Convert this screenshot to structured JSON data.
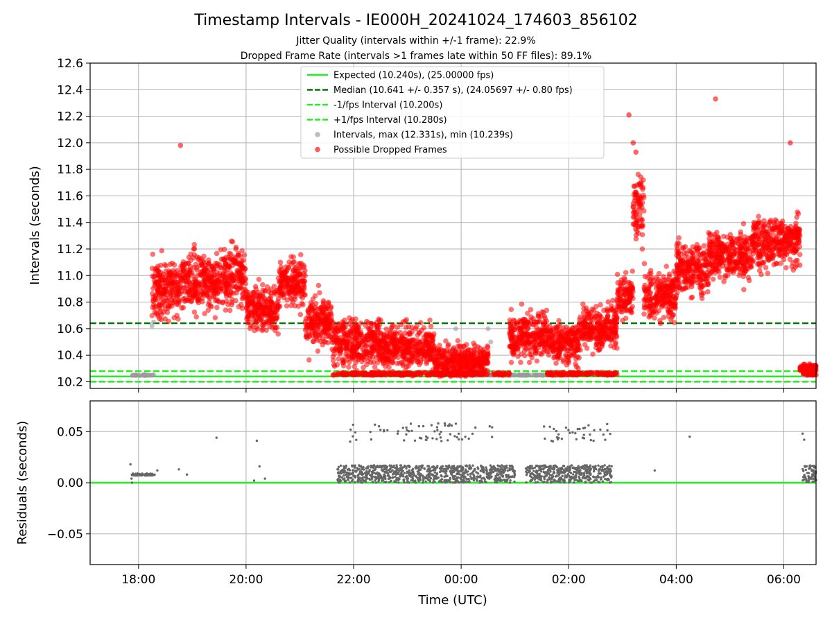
{
  "title": "Timestamp Intervals - IE000H_20241024_174603_856102",
  "subtitle_1": "Jitter Quality (intervals within +/-1 frame): 22.9%",
  "subtitle_2": "Dropped Frame Rate (intervals >1 frames late within 50 FF files): 89.1%",
  "colors": {
    "expected": "#22ee22",
    "median": "#007700",
    "bound": "#22ee22",
    "intervals": "#999999",
    "dropped": "#ff0000",
    "residuals": "#666666",
    "grid": "#b0b0b0"
  },
  "chart_data": [
    {
      "type": "scatter",
      "panel": "top",
      "ylabel": "Intervals (seconds)",
      "ylim": [
        10.15,
        12.6
      ],
      "yticks": [
        "10.2",
        "10.4",
        "10.6",
        "10.8",
        "11.0",
        "11.2",
        "11.4",
        "11.6",
        "11.8",
        "12.0",
        "12.2",
        "12.4",
        "12.6"
      ],
      "xlim_hours": [
        17.1,
        30.6
      ],
      "grid": true,
      "legend_position": "top-center",
      "lines": [
        {
          "name": "Expected (10.240s), (25.00000 fps)",
          "value": 10.24,
          "style": "solid",
          "color_key": "expected"
        },
        {
          "name": "Median (10.641 +/- 0.357 s), (24.05697 +/- 0.80 fps)",
          "value": 10.641,
          "style": "dashed",
          "color_key": "median"
        },
        {
          "name": "-1/fps Interval (10.200s)",
          "value": 10.2,
          "style": "dashed",
          "color_key": "bound"
        },
        {
          "name": "+1/fps Interval (10.280s)",
          "value": 10.28,
          "style": "dashed",
          "color_key": "bound"
        }
      ],
      "scatter_series": [
        {
          "name": "Intervals, max (12.331s), min (10.239s)",
          "color_key": "intervals"
        },
        {
          "name": "Possible Dropped Frames",
          "color_key": "dropped"
        }
      ],
      "dropped_segments": [
        {
          "t": [
            18.25,
            18.8
          ],
          "base": 10.9,
          "spread": 0.22
        },
        {
          "t": [
            18.8,
            19.5
          ],
          "base": 10.95,
          "spread": 0.22
        },
        {
          "t": [
            19.5,
            20.0
          ],
          "base": 11.0,
          "spread": 0.22
        },
        {
          "t": [
            20.0,
            20.6
          ],
          "base": 10.75,
          "spread": 0.18
        },
        {
          "t": [
            20.6,
            21.1
          ],
          "base": 10.95,
          "spread": 0.18
        },
        {
          "t": [
            21.1,
            21.6
          ],
          "base": 10.65,
          "spread": 0.2
        },
        {
          "t": [
            21.6,
            22.5
          ],
          "base": 10.5,
          "spread": 0.18
        },
        {
          "t": [
            22.5,
            23.5
          ],
          "base": 10.45,
          "spread": 0.17
        },
        {
          "t": [
            23.5,
            24.0
          ],
          "base": 10.35,
          "spread": 0.14
        },
        {
          "t": [
            24.0,
            24.5
          ],
          "base": 10.35,
          "spread": 0.12
        },
        {
          "t": [
            24.9,
            25.6
          ],
          "base": 10.55,
          "spread": 0.18
        },
        {
          "t": [
            25.6,
            26.2
          ],
          "base": 10.5,
          "spread": 0.16
        },
        {
          "t": [
            26.2,
            26.9
          ],
          "base": 10.6,
          "spread": 0.18
        },
        {
          "t": [
            26.9,
            27.2
          ],
          "base": 10.85,
          "spread": 0.16
        },
        {
          "t": [
            27.2,
            27.4
          ],
          "base": 11.5,
          "spread": 0.25
        },
        {
          "t": [
            27.4,
            28.0
          ],
          "base": 10.85,
          "spread": 0.18
        },
        {
          "t": [
            28.0,
            28.6
          ],
          "base": 11.05,
          "spread": 0.2
        },
        {
          "t": [
            28.6,
            29.4
          ],
          "base": 11.15,
          "spread": 0.18
        },
        {
          "t": [
            29.4,
            30.3
          ],
          "base": 11.25,
          "spread": 0.2
        },
        {
          "t": [
            30.3,
            30.6
          ],
          "base": 10.3,
          "spread": 0.03
        }
      ],
      "dropped_floor_segments": [
        [
          21.6,
          24.5
        ],
        [
          24.6,
          24.9
        ],
        [
          25.6,
          26.9
        ],
        [
          30.35,
          30.6
        ]
      ],
      "normal_segments": [
        {
          "t": [
            17.85,
            18.3
          ],
          "value": 10.25
        },
        {
          "t": [
            24.0,
            25.6
          ],
          "value": 10.25
        },
        {
          "t": [
            30.35,
            30.6
          ],
          "value": 10.25
        }
      ],
      "outliers": [
        {
          "t": 18.78,
          "y": 11.98
        },
        {
          "t": 27.12,
          "y": 12.21
        },
        {
          "t": 28.73,
          "y": 12.33
        },
        {
          "t": 30.12,
          "y": 12.0
        },
        {
          "t": 27.2,
          "y": 12.0
        },
        {
          "t": 27.25,
          "y": 11.93
        }
      ]
    },
    {
      "type": "scatter",
      "panel": "bottom",
      "ylabel": "Residuals (seconds)",
      "xlabel": "Time (UTC)",
      "ylim": [
        -0.08,
        0.08
      ],
      "yticks": [
        "−0.05",
        "0.00",
        "0.05"
      ],
      "ytick_values": [
        -0.05,
        0.0,
        0.05
      ],
      "xticks": [
        "18:00",
        "20:00",
        "22:00",
        "00:00",
        "02:00",
        "04:00",
        "06:00"
      ],
      "xtick_hours": [
        18,
        20,
        22,
        24,
        26,
        28,
        30
      ],
      "zero_line": 0.0,
      "residual_band_segments": [
        [
          21.7,
          24.0
        ],
        [
          24.0,
          25.0
        ],
        [
          25.2,
          26.0
        ],
        [
          26.0,
          26.8
        ],
        [
          30.35,
          30.6
        ]
      ],
      "residual_fixed_segment": {
        "t": [
          17.85,
          18.3
        ],
        "value": 0.008
      },
      "residual_high_segments": [
        [
          21.9,
          22.1
        ],
        [
          22.3,
          24.3
        ],
        [
          24.5,
          24.6
        ],
        [
          25.5,
          26.8
        ]
      ]
    }
  ]
}
